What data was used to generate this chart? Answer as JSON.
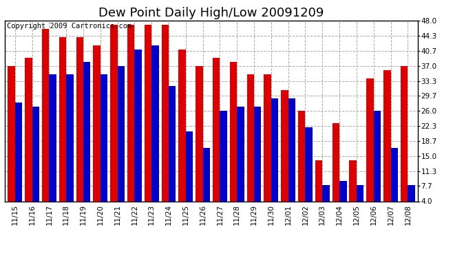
{
  "title": "Dew Point Daily High/Low 20091209",
  "copyright": "Copyright 2009 Cartronics.com",
  "dates": [
    "11/15",
    "11/16",
    "11/17",
    "11/18",
    "11/19",
    "11/20",
    "11/21",
    "11/22",
    "11/23",
    "11/24",
    "11/25",
    "11/26",
    "11/27",
    "11/28",
    "11/29",
    "11/30",
    "12/01",
    "12/02",
    "12/03",
    "12/04",
    "12/05",
    "12/06",
    "12/07",
    "12/08"
  ],
  "highs": [
    37,
    39,
    46,
    44,
    44,
    42,
    47,
    47,
    47,
    47,
    41,
    37,
    39,
    38,
    35,
    35,
    31,
    26,
    14,
    23,
    14,
    34,
    36,
    37
  ],
  "lows": [
    28,
    27,
    35,
    35,
    38,
    35,
    37,
    41,
    42,
    32,
    21,
    17,
    26,
    27,
    27,
    29,
    29,
    22,
    8,
    9,
    8,
    26,
    17,
    8
  ],
  "high_color": "#dd0000",
  "low_color": "#0000cc",
  "background_color": "#ffffff",
  "plot_bg_color": "#ffffff",
  "grid_color": "#aaaaaa",
  "ylim": [
    4.0,
    48.0
  ],
  "yticks": [
    4.0,
    7.7,
    11.3,
    15.0,
    18.7,
    22.3,
    26.0,
    29.7,
    33.3,
    37.0,
    40.7,
    44.3,
    48.0
  ],
  "title_fontsize": 13,
  "copyright_fontsize": 7.5,
  "tick_fontsize": 7.5
}
